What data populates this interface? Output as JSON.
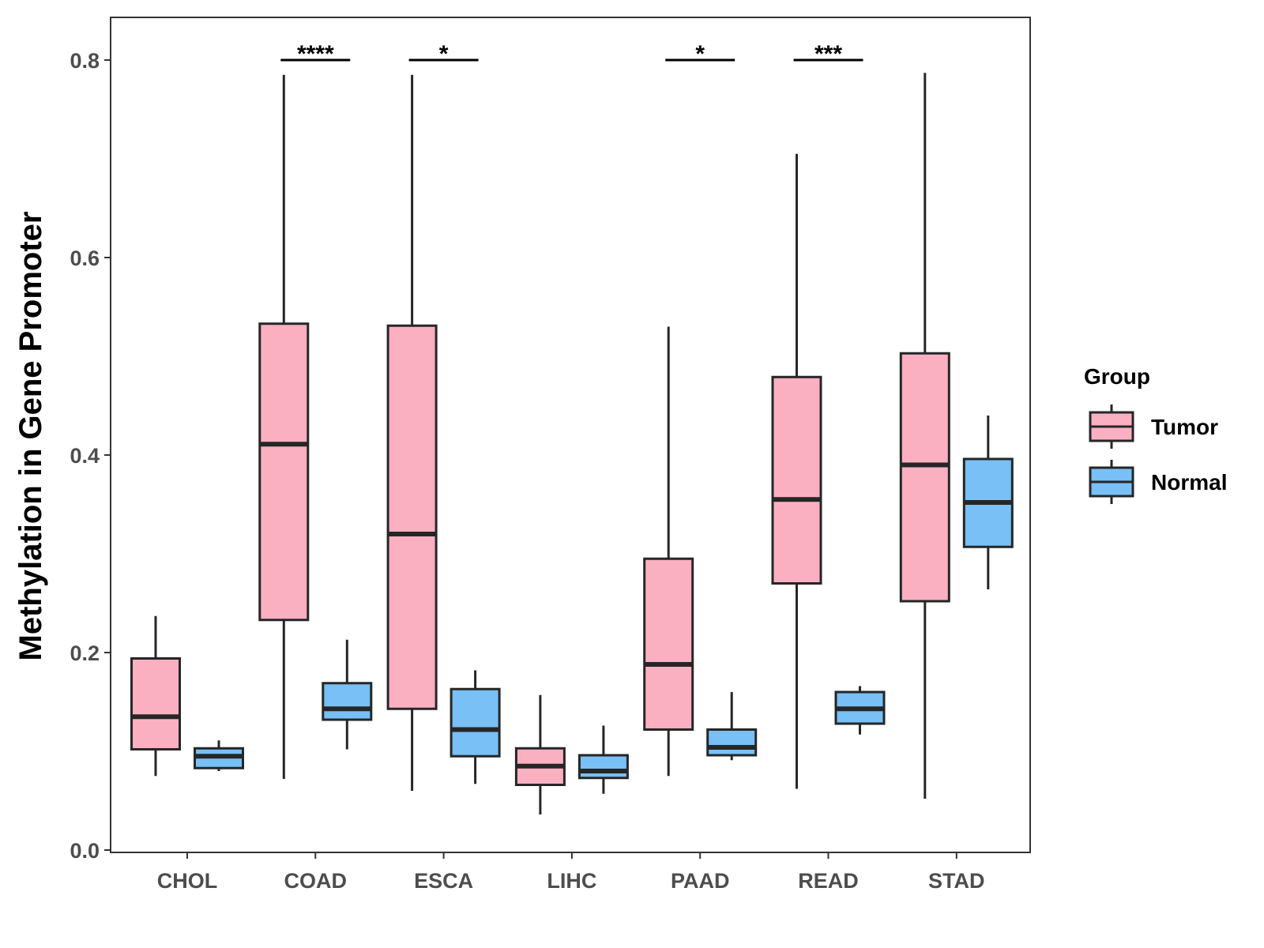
{
  "chart_data": {
    "type": "boxplot",
    "title": "",
    "xlabel": "",
    "ylabel": "Methylation in Gene Promoter",
    "ylim": [
      0.0,
      0.8
    ],
    "yticks": [
      0.0,
      0.2,
      0.4,
      0.6,
      0.8
    ],
    "ytick_labels": [
      "0.0",
      "0.2",
      "0.4",
      "0.6",
      "0.8"
    ],
    "categories": [
      "CHOL",
      "COAD",
      "ESCA",
      "LIHC",
      "PAAD",
      "READ",
      "STAD"
    ],
    "legend": {
      "title": "Group",
      "position": "right",
      "entries": [
        {
          "name": "Tumor",
          "color": "#fbb0c2"
        },
        {
          "name": "Normal",
          "color": "#78c0f6"
        }
      ]
    },
    "series": [
      {
        "name": "Tumor",
        "color": "#fbb0c2",
        "boxes": [
          {
            "category": "CHOL",
            "min": 0.075,
            "q1": 0.102,
            "median": 0.135,
            "q3": 0.194,
            "max": 0.237
          },
          {
            "category": "COAD",
            "min": 0.072,
            "q1": 0.233,
            "median": 0.411,
            "q3": 0.533,
            "max": 0.785
          },
          {
            "category": "ESCA",
            "min": 0.06,
            "q1": 0.143,
            "median": 0.32,
            "q3": 0.531,
            "max": 0.785
          },
          {
            "category": "LIHC",
            "min": 0.036,
            "q1": 0.066,
            "median": 0.085,
            "q3": 0.103,
            "max": 0.157
          },
          {
            "category": "PAAD",
            "min": 0.075,
            "q1": 0.122,
            "median": 0.188,
            "q3": 0.295,
            "max": 0.53
          },
          {
            "category": "READ",
            "min": 0.062,
            "q1": 0.27,
            "median": 0.355,
            "q3": 0.479,
            "max": 0.705
          },
          {
            "category": "STAD",
            "min": 0.052,
            "q1": 0.252,
            "median": 0.39,
            "q3": 0.503,
            "max": 0.787
          }
        ]
      },
      {
        "name": "Normal",
        "color": "#78c0f6",
        "boxes": [
          {
            "category": "CHOL",
            "min": 0.08,
            "q1": 0.083,
            "median": 0.095,
            "q3": 0.103,
            "max": 0.111
          },
          {
            "category": "COAD",
            "min": 0.102,
            "q1": 0.132,
            "median": 0.143,
            "q3": 0.169,
            "max": 0.213
          },
          {
            "category": "ESCA",
            "min": 0.067,
            "q1": 0.095,
            "median": 0.122,
            "q3": 0.163,
            "max": 0.182
          },
          {
            "category": "LIHC",
            "min": 0.057,
            "q1": 0.073,
            "median": 0.08,
            "q3": 0.096,
            "max": 0.126
          },
          {
            "category": "PAAD",
            "min": 0.091,
            "q1": 0.096,
            "median": 0.104,
            "q3": 0.122,
            "max": 0.16
          },
          {
            "category": "READ",
            "min": 0.117,
            "q1": 0.128,
            "median": 0.143,
            "q3": 0.16,
            "max": 0.166
          },
          {
            "category": "STAD",
            "min": 0.264,
            "q1": 0.307,
            "median": 0.352,
            "q3": 0.396,
            "max": 0.44
          }
        ]
      }
    ],
    "significance": [
      {
        "category": "COAD",
        "label": "****",
        "y": 0.8
      },
      {
        "category": "ESCA",
        "label": "*",
        "y": 0.8
      },
      {
        "category": "PAAD",
        "label": "*",
        "y": 0.8
      },
      {
        "category": "READ",
        "label": "***",
        "y": 0.8
      }
    ],
    "grid": false
  }
}
